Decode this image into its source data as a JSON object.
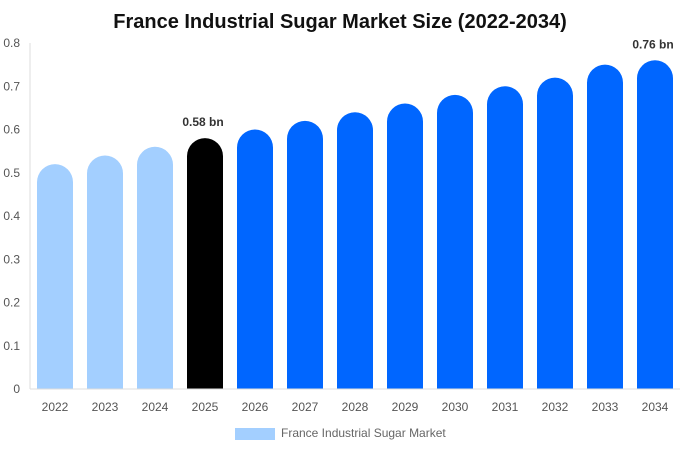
{
  "chart_data": {
    "type": "bar",
    "title": "France Industrial Sugar Market Size (2022-2034)",
    "categories": [
      "2022",
      "2023",
      "2024",
      "2025",
      "2026",
      "2027",
      "2028",
      "2029",
      "2030",
      "2031",
      "2032",
      "2033",
      "2034"
    ],
    "series": [
      {
        "name": "France Industrial Sugar Market",
        "values": [
          0.52,
          0.54,
          0.56,
          0.58,
          0.6,
          0.62,
          0.64,
          0.66,
          0.68,
          0.7,
          0.72,
          0.75,
          0.76
        ]
      }
    ],
    "ylim": [
      0,
      0.8
    ],
    "yticks": [
      "0",
      "0.1",
      "0.2",
      "0.3",
      "0.4",
      "0.5",
      "0.6",
      "0.7",
      "0.8"
    ],
    "data_labels": [
      {
        "category": "2025",
        "text": "0.58 bn"
      },
      {
        "category": "2034",
        "text": "0.76 bn"
      }
    ],
    "colors": {
      "historical": "#a3cfff",
      "current": "#000000",
      "forecast": "#0066ff"
    },
    "grid": false,
    "legend_position": "bottom"
  }
}
